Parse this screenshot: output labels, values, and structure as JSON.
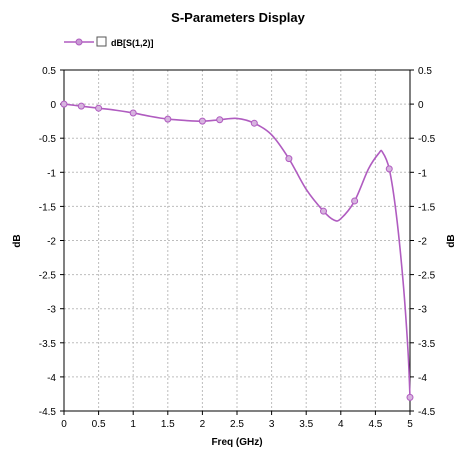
{
  "chart_data": {
    "type": "line",
    "title": "S-Parameters Display",
    "xlabel": "Freq (GHz)",
    "ylabel": "dB",
    "ylabel_right": "dB",
    "xlim": [
      0,
      5
    ],
    "ylim": [
      -4.5,
      0.5
    ],
    "x_ticks": [
      "0",
      "0.5",
      "1",
      "1.5",
      "2",
      "2.5",
      "3",
      "3.5",
      "4",
      "4.5",
      "5"
    ],
    "y_ticks": [
      "0.5",
      "0",
      "-0.5",
      "-1",
      "-1.5",
      "-2",
      "-2.5",
      "-3",
      "-3.5",
      "-4",
      "-4.5"
    ],
    "grid": true,
    "legend_position": "top-left",
    "series": [
      {
        "name": "dB[S(1,2)]",
        "color": "#b05cc0",
        "x": [
          0,
          0.25,
          0.5,
          0.75,
          1.0,
          1.25,
          1.5,
          1.75,
          2.0,
          2.25,
          2.5,
          2.75,
          3.0,
          3.25,
          3.5,
          3.75,
          3.9,
          4.0,
          4.2,
          4.4,
          4.55,
          4.6,
          4.7,
          4.8,
          4.9,
          4.97,
          5.0
        ],
        "y": [
          0,
          -0.03,
          -0.06,
          -0.09,
          -0.13,
          -0.18,
          -0.22,
          -0.24,
          -0.25,
          -0.23,
          -0.21,
          -0.28,
          -0.45,
          -0.8,
          -1.25,
          -1.57,
          -1.7,
          -1.68,
          -1.42,
          -0.95,
          -0.72,
          -0.7,
          -0.95,
          -1.6,
          -2.6,
          -3.6,
          -4.3
        ],
        "markers_x": [
          0,
          0.25,
          0.5,
          1.0,
          1.5,
          2.0,
          2.25,
          2.75,
          3.25,
          3.75,
          4.2,
          4.7,
          5.0
        ],
        "markers_y": [
          0,
          -0.03,
          -0.06,
          -0.13,
          -0.22,
          -0.25,
          -0.23,
          -0.28,
          -0.8,
          -1.57,
          -1.42,
          -0.95,
          -4.3
        ]
      }
    ]
  }
}
